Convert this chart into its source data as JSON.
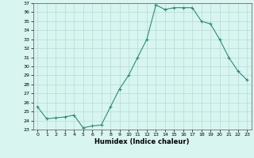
{
  "x": [
    0,
    1,
    2,
    3,
    4,
    5,
    6,
    7,
    8,
    9,
    10,
    11,
    12,
    13,
    14,
    15,
    16,
    17,
    18,
    19,
    20,
    21,
    22,
    23
  ],
  "y": [
    25.5,
    24.2,
    24.3,
    24.4,
    24.6,
    23.2,
    23.4,
    23.5,
    25.5,
    27.5,
    29.0,
    31.0,
    33.0,
    36.8,
    36.3,
    36.5,
    36.5,
    36.5,
    35.0,
    34.7,
    33.0,
    31.0,
    29.5,
    28.5
  ],
  "title": "",
  "xlabel": "Humidex (Indice chaleur)",
  "ylabel": "",
  "ylim": [
    23,
    37
  ],
  "xlim": [
    -0.5,
    23.5
  ],
  "yticks": [
    23,
    24,
    25,
    26,
    27,
    28,
    29,
    30,
    31,
    32,
    33,
    34,
    35,
    36,
    37
  ],
  "xticks": [
    0,
    1,
    2,
    3,
    4,
    5,
    6,
    7,
    8,
    9,
    10,
    11,
    12,
    13,
    14,
    15,
    16,
    17,
    18,
    19,
    20,
    21,
    22,
    23
  ],
  "line_color": "#2e8b7a",
  "marker": "+",
  "markersize": 3,
  "linewidth": 0.8,
  "bg_color": "#d8f5f0",
  "grid_color": "#b0ddd8",
  "xlabel_fontsize": 6,
  "xlabel_fontweight": "bold",
  "tick_fontsize": 4.5
}
